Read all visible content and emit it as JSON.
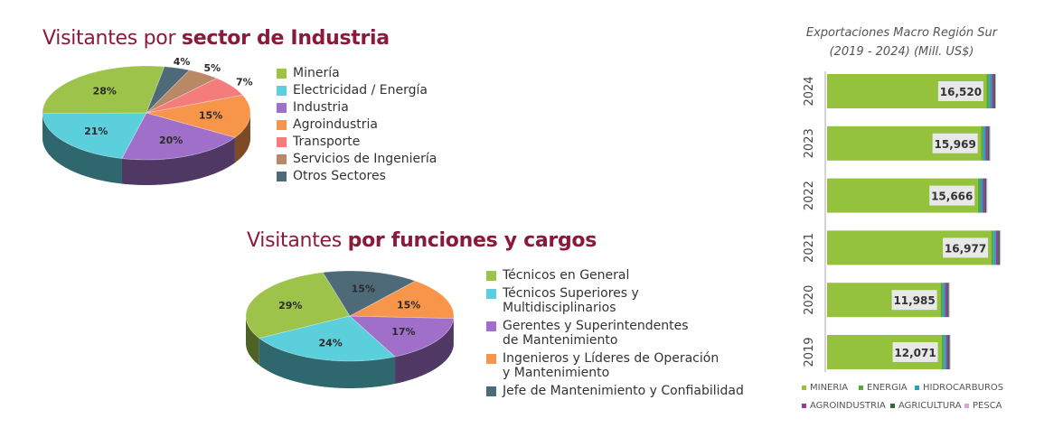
{
  "chart_data": [
    {
      "type": "pie",
      "title": "Visitantes por",
      "title_emphasis": "sector de Industria",
      "categories": [
        "Minería",
        "Electricidad / Energía",
        "Industria",
        "Agroindustria",
        "Transporte",
        "Servicios de Ingeniería",
        "Otros Sectores"
      ],
      "values": [
        28,
        21,
        20,
        15,
        7,
        5,
        4
      ],
      "value_labels": [
        "28%",
        "21%",
        "20%",
        "15%",
        "7%",
        "5%",
        "4%"
      ],
      "colors": [
        "#9dc34a",
        "#5bcfdc",
        "#a06fc9",
        "#f7954a",
        "#f47c7c",
        "#b98865",
        "#4e6a78"
      ],
      "legend": "right"
    },
    {
      "type": "pie",
      "title": "Visitantes",
      "title_emphasis": "por funciones y cargos",
      "categories": [
        "Técnicos en General",
        "Técnicos Superiores y\nMultidisciplinarios",
        "Gerentes y Superintendentes\nde Mantenimiento",
        "Ingenieros y Líderes de Operación\ny Mantenimiento",
        "Jefe de Mantenimiento y Confiabilidad"
      ],
      "values": [
        29,
        24,
        17,
        15,
        15
      ],
      "value_labels": [
        "29%",
        "24%",
        "17%",
        "15%",
        "15%"
      ],
      "colors": [
        "#9dc34a",
        "#5bcfdc",
        "#a06fc9",
        "#f7954a",
        "#4e6a78"
      ],
      "legend": "right"
    },
    {
      "type": "bar",
      "orientation": "horizontal",
      "stacked": true,
      "title": "Exportaciones Macro Región Sur\n(2019 - 2024) (Mill. US$)",
      "categories": [
        "2024",
        "2023",
        "2022",
        "2021",
        "2020",
        "2019"
      ],
      "series": [
        {
          "name": "MINERIA",
          "color": "#95c23d",
          "values": [
            15600,
            15050,
            14750,
            16050,
            11100,
            11200
          ]
        },
        {
          "name": "ENERGIA",
          "color": "#5aa83d",
          "values": [
            250,
            230,
            230,
            230,
            220,
            220
          ]
        },
        {
          "name": "HIDROCARBUROS",
          "color": "#2aa0c0",
          "values": [
            250,
            230,
            230,
            230,
            220,
            220
          ]
        },
        {
          "name": "AGROINDUSTRIA",
          "color": "#9a3a9a",
          "values": [
            200,
            220,
            220,
            230,
            220,
            200
          ]
        },
        {
          "name": "AGRICULTURA",
          "color": "#2f6b3a",
          "values": [
            150,
            150,
            150,
            150,
            150,
            150
          ]
        },
        {
          "name": "PESCA",
          "color": "#d7a6d6",
          "values": [
            70,
            89,
            86,
            87,
            75,
            81
          ]
        }
      ],
      "totals": [
        16520,
        15969,
        15666,
        16977,
        11985,
        12071
      ],
      "total_labels": [
        "16,520",
        "15,969",
        "15,666",
        "16,977",
        "11,985",
        "12,071"
      ],
      "xlim": [
        0,
        17500
      ],
      "legend": "bottom"
    }
  ]
}
